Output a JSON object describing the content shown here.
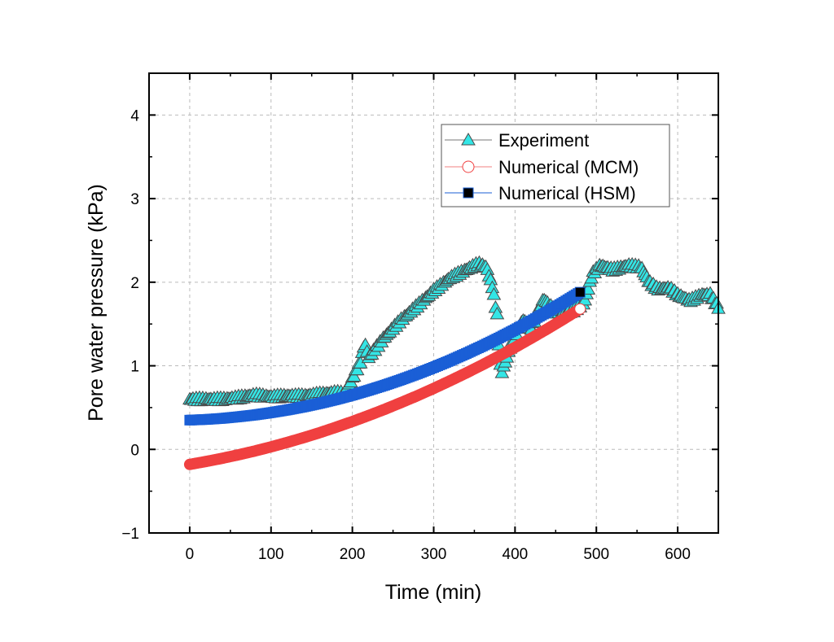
{
  "chart_data": {
    "type": "scatter",
    "title": "",
    "xlabel": "Time (min)",
    "ylabel": "Pore water pressure (kPa)",
    "xlim": [
      -50,
      650
    ],
    "ylim": [
      -1,
      4.5
    ],
    "xticks": [
      "0",
      "100",
      "200",
      "300",
      "400",
      "500",
      "600"
    ],
    "xtick_values": [
      0,
      100,
      200,
      300,
      400,
      500,
      600
    ],
    "yticks": [
      "−1",
      "0",
      "1",
      "2",
      "3",
      "4"
    ],
    "ytick_values": [
      -1,
      0,
      1,
      2,
      3,
      4
    ],
    "grid": true,
    "legend_position": "top-right",
    "series": [
      {
        "name": "Experiment",
        "marker": "triangle",
        "color": "#33e6e6",
        "edge": "#4a4a4a",
        "x": [
          0,
          20,
          40,
          60,
          80,
          100,
          120,
          140,
          160,
          180,
          190,
          200,
          210,
          215,
          220,
          240,
          260,
          280,
          300,
          320,
          340,
          355,
          365,
          372,
          378,
          381,
          383,
          395,
          410,
          420,
          435,
          450,
          470,
          485,
          495,
          505,
          520,
          540,
          555,
          565,
          575,
          590,
          600,
          615,
          630,
          640,
          650
        ],
        "y": [
          0.6,
          0.6,
          0.6,
          0.62,
          0.65,
          0.63,
          0.64,
          0.64,
          0.66,
          0.68,
          0.67,
          0.85,
          1.05,
          1.28,
          1.1,
          1.35,
          1.55,
          1.72,
          1.9,
          2.05,
          2.15,
          2.22,
          2.18,
          1.95,
          1.6,
          1.1,
          0.9,
          1.25,
          1.55,
          1.45,
          1.8,
          1.65,
          1.65,
          1.75,
          2.1,
          2.2,
          2.15,
          2.2,
          2.18,
          2.0,
          1.92,
          1.93,
          1.85,
          1.78,
          1.85,
          1.85,
          1.7
        ]
      },
      {
        "name": "Numerical (MCM)",
        "marker": "circle",
        "color": "#f04040",
        "x": [
          0,
          20,
          40,
          60,
          80,
          100,
          120,
          140,
          160,
          180,
          200,
          220,
          240,
          260,
          280,
          300,
          320,
          340,
          360,
          380,
          400,
          420,
          440,
          460,
          480
        ],
        "y": [
          -0.18,
          -0.145,
          -0.107,
          -0.065,
          -0.02,
          0.03,
          0.083,
          0.14,
          0.2,
          0.265,
          0.333,
          0.405,
          0.48,
          0.56,
          0.642,
          0.729,
          0.82,
          0.914,
          1.012,
          1.114,
          1.22,
          1.33,
          1.443,
          1.56,
          1.68
        ]
      },
      {
        "name": "Numerical (HSM)",
        "marker": "square",
        "color": "#1a5fd6",
        "x": [
          0,
          20,
          40,
          60,
          80,
          100,
          120,
          140,
          160,
          180,
          200,
          220,
          240,
          260,
          280,
          300,
          320,
          340,
          360,
          380,
          400,
          420,
          440,
          460,
          480
        ],
        "y": [
          0.35,
          0.358,
          0.371,
          0.39,
          0.412,
          0.44,
          0.472,
          0.509,
          0.551,
          0.598,
          0.65,
          0.707,
          0.768,
          0.834,
          0.905,
          0.981,
          1.061,
          1.147,
          1.237,
          1.332,
          1.432,
          1.537,
          1.647,
          1.761,
          1.88
        ]
      }
    ]
  }
}
